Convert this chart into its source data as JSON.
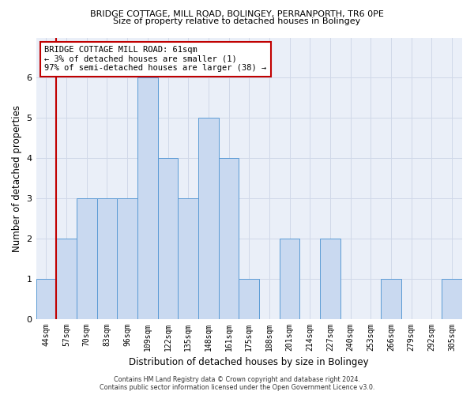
{
  "title_line1": "BRIDGE COTTAGE, MILL ROAD, BOLINGEY, PERRANPORTH, TR6 0PE",
  "title_line2": "Size of property relative to detached houses in Bolingey",
  "xlabel": "Distribution of detached houses by size in Bolingey",
  "ylabel": "Number of detached properties",
  "categories": [
    "44sqm",
    "57sqm",
    "70sqm",
    "83sqm",
    "96sqm",
    "109sqm",
    "122sqm",
    "135sqm",
    "148sqm",
    "161sqm",
    "175sqm",
    "188sqm",
    "201sqm",
    "214sqm",
    "227sqm",
    "240sqm",
    "253sqm",
    "266sqm",
    "279sqm",
    "292sqm",
    "305sqm"
  ],
  "values": [
    1,
    2,
    3,
    3,
    3,
    6,
    4,
    3,
    5,
    4,
    1,
    0,
    2,
    0,
    2,
    0,
    0,
    1,
    0,
    0,
    1
  ],
  "bar_color": "#c9d9f0",
  "bar_edge_color": "#5b9bd5",
  "vline_color": "#c00000",
  "vline_x_index": 1,
  "annotation_text": "BRIDGE COTTAGE MILL ROAD: 61sqm\n← 3% of detached houses are smaller (1)\n97% of semi-detached houses are larger (38) →",
  "annotation_box_color": "#ffffff",
  "annotation_box_edge_color": "#c00000",
  "ylim": [
    0,
    7
  ],
  "yticks": [
    0,
    1,
    2,
    3,
    4,
    5,
    6,
    7
  ],
  "footer_line1": "Contains HM Land Registry data © Crown copyright and database right 2024.",
  "footer_line2": "Contains public sector information licensed under the Open Government Licence v3.0.",
  "grid_color": "#d0d8e8",
  "background_color": "#eaeff8",
  "fig_width": 6.0,
  "fig_height": 5.0,
  "title1_fontsize": 8.0,
  "title2_fontsize": 8.0,
  "tick_fontsize": 7.0,
  "ylabel_fontsize": 8.5,
  "xlabel_fontsize": 8.5,
  "annot_fontsize": 7.5,
  "footer_fontsize": 5.8
}
